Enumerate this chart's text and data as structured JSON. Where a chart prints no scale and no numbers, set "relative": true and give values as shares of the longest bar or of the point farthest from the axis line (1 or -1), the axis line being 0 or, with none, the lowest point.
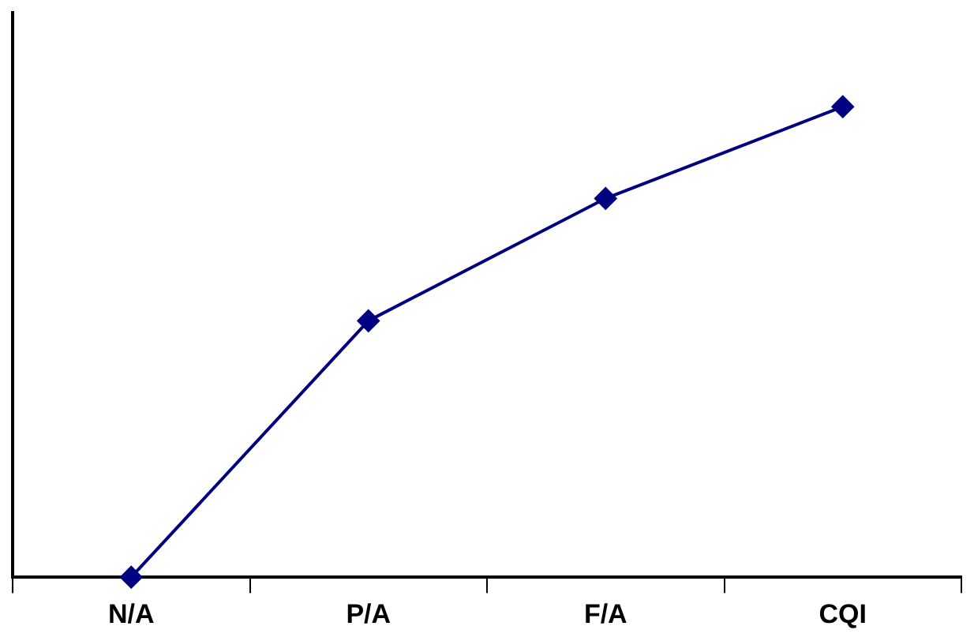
{
  "chart_data": {
    "type": "line",
    "relative": true,
    "categories": [
      "N/A",
      "P/A",
      "F/A",
      "CQI"
    ],
    "series": [
      {
        "color": "#000080",
        "values": [
          0,
          0.545,
          0.805,
          1
        ]
      }
    ],
    "marker": "diamond",
    "line_style": "solid",
    "grid": false,
    "legend": false
  }
}
